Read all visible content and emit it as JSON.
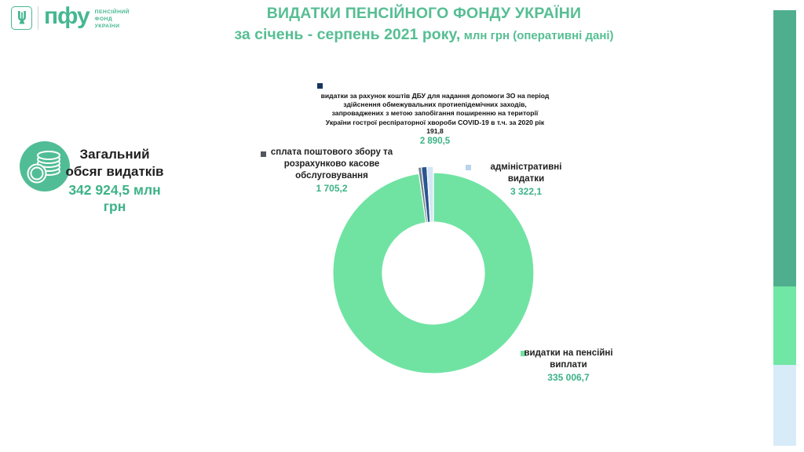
{
  "logo": {
    "abbr": "пфу",
    "org_lines": "ПЕНСІЙНИЙ\nФОНД\nУКРАЇНИ",
    "brand_color": "#45b791"
  },
  "header": {
    "title_line1": "ВИДАТКИ ПЕНСІЙНОГО ФОНДУ УКРАЇНИ",
    "title_line2_main": "за січень - серпень 2021 року,",
    "title_line2_sub": " млн грн (оперативні дані)",
    "title_color": "#56be93"
  },
  "total": {
    "label": "Загальний\nобсяг видатків",
    "value": "342 924,5 млн грн"
  },
  "chart_data": {
    "type": "pie",
    "subtype": "donut",
    "title": "ВИДАТКИ ПЕНСІЙНОГО ФОНДУ УКРАЇНИ за січень - серпень 2021 року",
    "unit": "млн грн",
    "total": 342924.5,
    "legend_position": "callouts",
    "slices": [
      {
        "name": "видатки на пенсійні виплати",
        "value": 335006.7,
        "display": "335 006,7",
        "color": "#70e3a3",
        "extended": false
      },
      {
        "name": "сплата поштового збору та розрахунково касове обслуговування",
        "value": 1705.2,
        "display": "1 705,2",
        "color": "#75828c",
        "extended": true
      },
      {
        "name": "видатки за рахунок коштів ДБУ для надання допомоги ЗО (COVID-19), в т.ч. за 2020 рік 191,8",
        "value": 2890.5,
        "display": "2 890,5",
        "color": "#2a5590",
        "extended": true
      },
      {
        "name": "адміністративні видатки",
        "value": 3322.1,
        "display": "3 322,1",
        "color": "#d5e6f4",
        "extended": true
      }
    ]
  },
  "callouts": {
    "covid": {
      "text": "видатки за рахунок коштів ДБУ для надання допомоги ЗО на період\nздійснення обмежувальних протиепідемічних заходів,\nзапроваджених з метою запобігання поширенню на території\nУкраїни гострої респіраторної хвороби COVID-19 в т.ч. за 2020  рік\n191,8",
      "value": "2 890,5",
      "marker_color": "#17365d"
    },
    "postal": {
      "text": "сплата поштового збору та\nрозрахунково касове\nобслуговування",
      "value": "1 705,2",
      "marker_color": "#53575d"
    },
    "admin": {
      "text": "адміністративні видатки",
      "value": "3 322,1",
      "marker_color": "#b9d4ec"
    },
    "pension": {
      "text": "видатки на пенсійні\nвиплати",
      "value": "335 006,7",
      "marker_color": "#70e3a3"
    }
  },
  "side_bar_colors": [
    "#4fae8d",
    "#70e7a4",
    "#d8ebf8"
  ]
}
